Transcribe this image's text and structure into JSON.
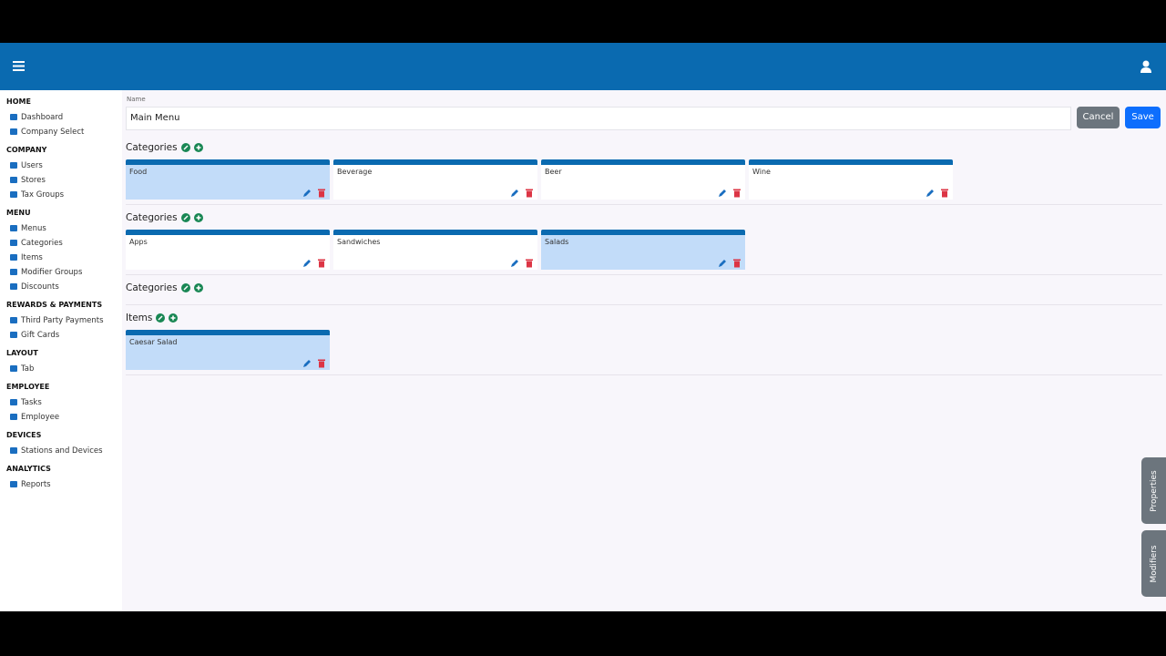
{
  "sidebar": {
    "sections": [
      {
        "title": "HOME",
        "items": [
          "Dashboard",
          "Company Select"
        ]
      },
      {
        "title": "COMPANY",
        "items": [
          "Users",
          "Stores",
          "Tax Groups"
        ]
      },
      {
        "title": "MENU",
        "items": [
          "Menus",
          "Categories",
          "Items",
          "Modifier Groups",
          "Discounts"
        ]
      },
      {
        "title": "REWARDS & PAYMENTS",
        "items": [
          "Third Party Payments",
          "Gift Cards"
        ]
      },
      {
        "title": "LAYOUT",
        "items": [
          "Tab"
        ]
      },
      {
        "title": "EMPLOYEE",
        "items": [
          "Tasks",
          "Employee"
        ]
      },
      {
        "title": "DEVICES",
        "items": [
          "Stations and Devices"
        ]
      },
      {
        "title": "ANALYTICS",
        "items": [
          "Reports"
        ]
      }
    ]
  },
  "form": {
    "name_label": "Name",
    "name_value": "Main Menu",
    "cancel": "Cancel",
    "save": "Save"
  },
  "groups": [
    {
      "title": "Categories",
      "cards": [
        {
          "label": "Food",
          "selected": true
        },
        {
          "label": "Beverage",
          "selected": false
        },
        {
          "label": "Beer",
          "selected": false
        },
        {
          "label": "Wine",
          "selected": false
        }
      ]
    },
    {
      "title": "Categories",
      "cards": [
        {
          "label": "Apps",
          "selected": false
        },
        {
          "label": "Sandwiches",
          "selected": false
        },
        {
          "label": "Salads",
          "selected": true
        }
      ]
    },
    {
      "title": "Categories",
      "cards": []
    },
    {
      "title": "Items",
      "cards": [
        {
          "label": "Caesar Salad",
          "selected": true
        }
      ]
    }
  ],
  "side_tabs": [
    "Properties",
    "Modifiers"
  ]
}
